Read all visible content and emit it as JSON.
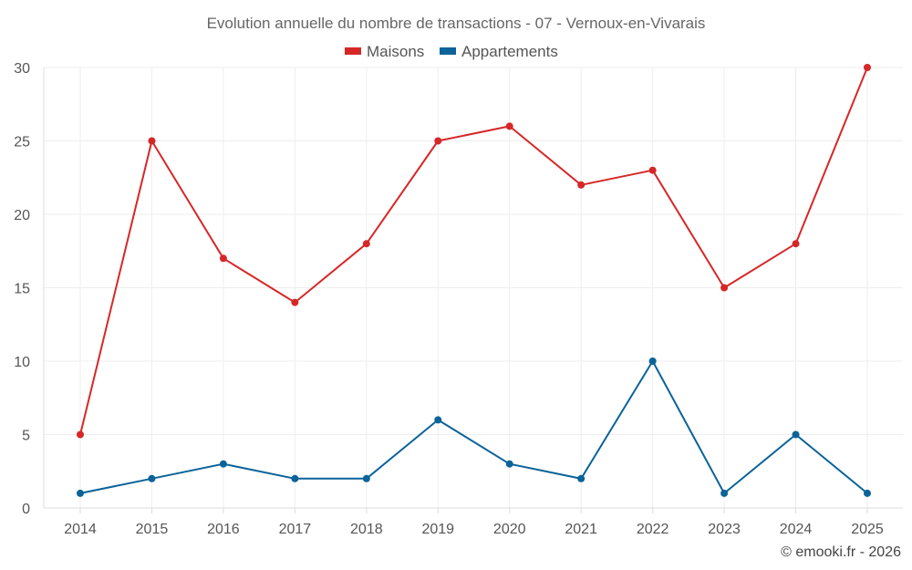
{
  "chart_data": {
    "type": "line",
    "title": "Evolution annuelle du nombre de transactions - 07 - Vernoux-en-Vivarais",
    "categories": [
      "2014",
      "2015",
      "2016",
      "2017",
      "2018",
      "2019",
      "2020",
      "2021",
      "2022",
      "2023",
      "2024",
      "2025"
    ],
    "series": [
      {
        "name": "Maisons",
        "color": "#d62728",
        "values": [
          5,
          25,
          17,
          14,
          18,
          25,
          26,
          22,
          23,
          15,
          18,
          30
        ]
      },
      {
        "name": "Appartements",
        "color": "#0b6399",
        "values": [
          1,
          2,
          3,
          2,
          2,
          6,
          3,
          2,
          10,
          1,
          5,
          1
        ]
      }
    ],
    "ylim": [
      0,
      30
    ],
    "yticks": [
      0,
      5,
      10,
      15,
      20,
      25,
      30
    ],
    "grid": true,
    "legend": "top-center",
    "xlabel": "",
    "ylabel": ""
  },
  "credit": "© emooki.fr - 2026"
}
